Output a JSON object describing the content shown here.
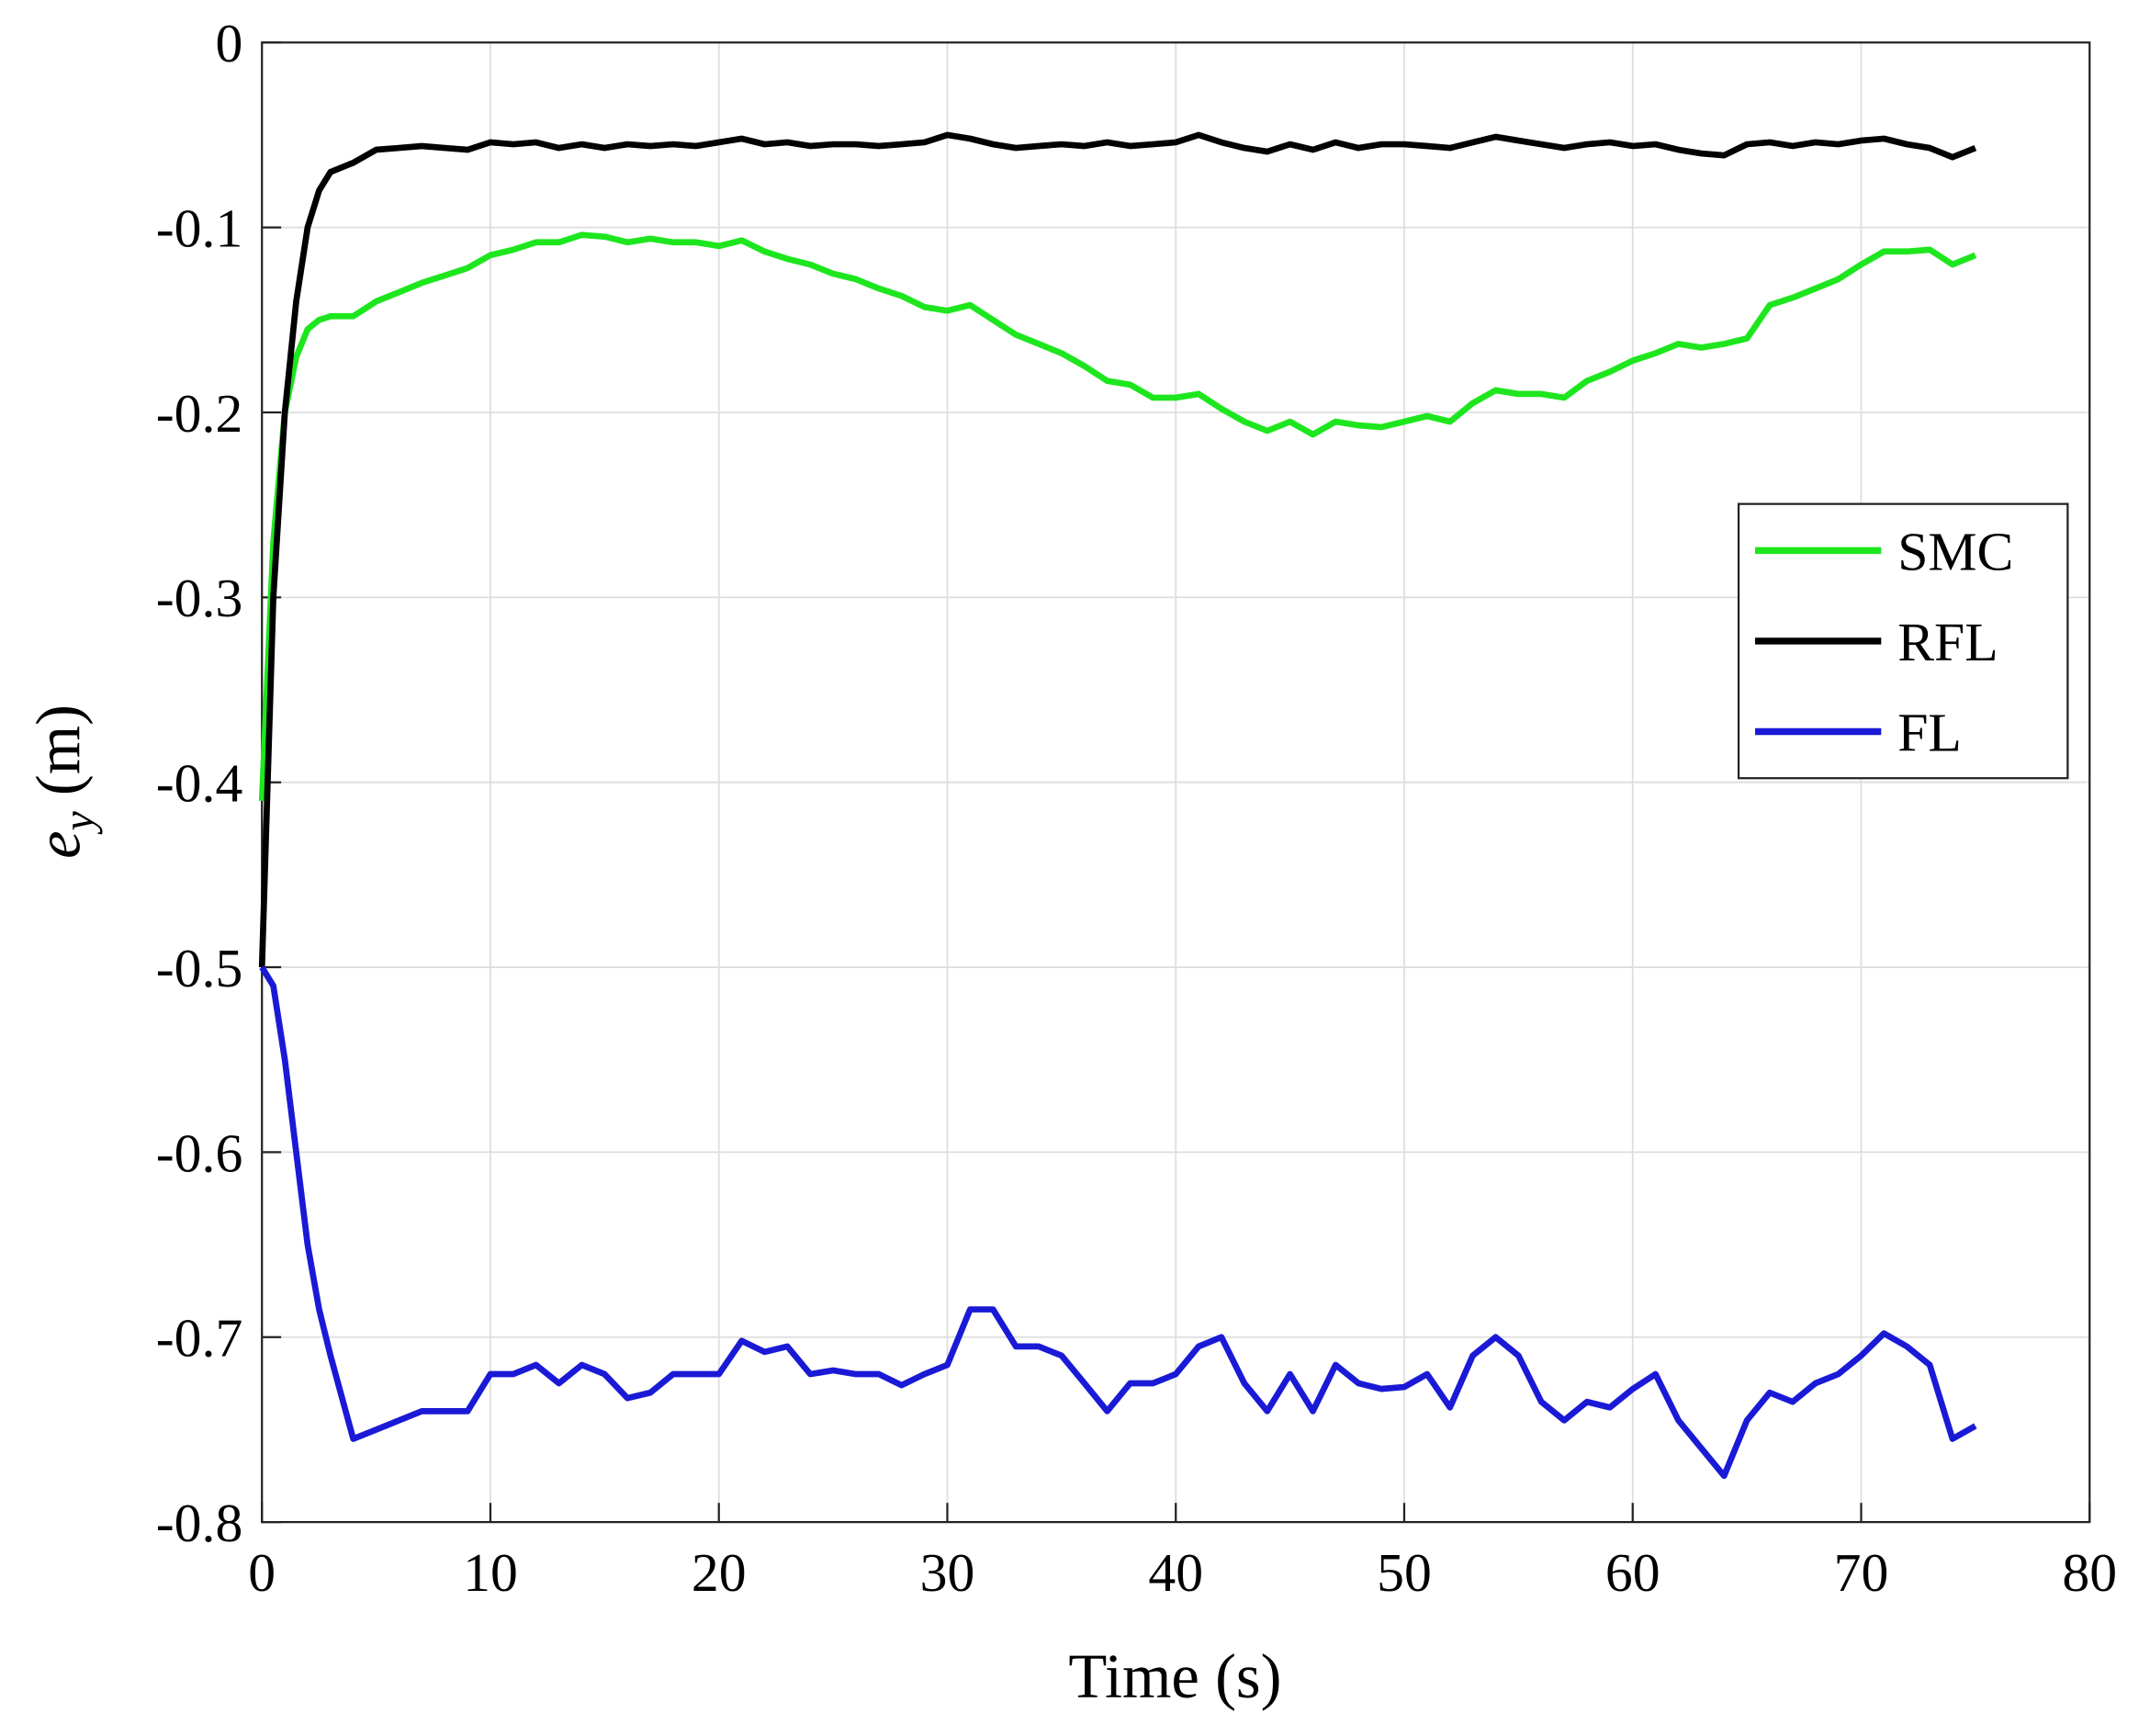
{
  "chart_data": {
    "type": "line",
    "xlabel": "Time (s)",
    "ylabel": "e_y (m)",
    "x": [
      0,
      0.5,
      1,
      1.5,
      2,
      2.5,
      3,
      4,
      5,
      6,
      7,
      8,
      9,
      10,
      11,
      12,
      13,
      14,
      15,
      16,
      17,
      18,
      19,
      20,
      21,
      22,
      23,
      24,
      25,
      26,
      27,
      28,
      29,
      30,
      31,
      32,
      33,
      34,
      35,
      36,
      37,
      38,
      39,
      40,
      41,
      42,
      43,
      44,
      45,
      46,
      47,
      48,
      49,
      50,
      51,
      52,
      53,
      54,
      55,
      56,
      57,
      58,
      59,
      60,
      61,
      62,
      63,
      64,
      65,
      66,
      67,
      68,
      69,
      70,
      71,
      72,
      73,
      74,
      75
    ],
    "series": [
      {
        "name": "SMC",
        "color": "#1ee61e",
        "values": [
          -0.41,
          -0.27,
          -0.2,
          -0.17,
          -0.155,
          -0.15,
          -0.148,
          -0.148,
          -0.14,
          -0.135,
          -0.13,
          -0.126,
          -0.122,
          -0.115,
          -0.112,
          -0.108,
          -0.108,
          -0.104,
          -0.105,
          -0.108,
          -0.106,
          -0.108,
          -0.108,
          -0.11,
          -0.107,
          -0.113,
          -0.117,
          -0.12,
          -0.125,
          -0.128,
          -0.133,
          -0.137,
          -0.143,
          -0.145,
          -0.142,
          -0.15,
          -0.158,
          -0.163,
          -0.168,
          -0.175,
          -0.183,
          -0.185,
          -0.192,
          -0.192,
          -0.19,
          -0.198,
          -0.205,
          -0.21,
          -0.205,
          -0.212,
          -0.205,
          -0.207,
          -0.208,
          -0.205,
          -0.202,
          -0.205,
          -0.195,
          -0.188,
          -0.19,
          -0.19,
          -0.192,
          -0.183,
          -0.178,
          -0.172,
          -0.168,
          -0.163,
          -0.165,
          -0.163,
          -0.16,
          -0.142,
          -0.138,
          -0.133,
          -0.128,
          -0.12,
          -0.113,
          -0.113,
          -0.112,
          -0.12,
          -0.115
        ]
      },
      {
        "name": "RFL",
        "color": "#000000",
        "values": [
          -0.5,
          -0.3,
          -0.2,
          -0.14,
          -0.1,
          -0.08,
          -0.07,
          -0.065,
          -0.058,
          -0.057,
          -0.056,
          -0.057,
          -0.058,
          -0.054,
          -0.055,
          -0.054,
          -0.057,
          -0.055,
          -0.057,
          -0.055,
          -0.056,
          -0.055,
          -0.056,
          -0.054,
          -0.052,
          -0.055,
          -0.054,
          -0.056,
          -0.055,
          -0.055,
          -0.056,
          -0.055,
          -0.054,
          -0.05,
          -0.052,
          -0.055,
          -0.057,
          -0.056,
          -0.055,
          -0.056,
          -0.054,
          -0.056,
          -0.055,
          -0.054,
          -0.05,
          -0.054,
          -0.057,
          -0.059,
          -0.055,
          -0.058,
          -0.054,
          -0.057,
          -0.055,
          -0.055,
          -0.056,
          -0.057,
          -0.054,
          -0.051,
          -0.053,
          -0.055,
          -0.057,
          -0.055,
          -0.054,
          -0.056,
          -0.055,
          -0.058,
          -0.06,
          -0.061,
          -0.055,
          -0.054,
          -0.056,
          -0.054,
          -0.055,
          -0.053,
          -0.052,
          -0.055,
          -0.057,
          -0.062,
          -0.057
        ]
      },
      {
        "name": "FL",
        "color": "#1a1ad6",
        "values": [
          -0.5,
          -0.51,
          -0.55,
          -0.6,
          -0.65,
          -0.685,
          -0.71,
          -0.755,
          -0.75,
          -0.745,
          -0.74,
          -0.74,
          -0.74,
          -0.72,
          -0.72,
          -0.715,
          -0.725,
          -0.715,
          -0.72,
          -0.733,
          -0.73,
          -0.72,
          -0.72,
          -0.72,
          -0.702,
          -0.708,
          -0.705,
          -0.72,
          -0.718,
          -0.72,
          -0.72,
          -0.726,
          -0.72,
          -0.715,
          -0.685,
          -0.685,
          -0.705,
          -0.705,
          -0.71,
          -0.725,
          -0.74,
          -0.725,
          -0.725,
          -0.72,
          -0.705,
          -0.7,
          -0.725,
          -0.74,
          -0.72,
          -0.74,
          -0.715,
          -0.725,
          -0.728,
          -0.727,
          -0.72,
          -0.738,
          -0.71,
          -0.7,
          -0.71,
          -0.735,
          -0.745,
          -0.735,
          -0.738,
          -0.728,
          -0.72,
          -0.745,
          -0.76,
          -0.775,
          -0.745,
          -0.73,
          -0.735,
          -0.725,
          -0.72,
          -0.71,
          -0.698,
          -0.705,
          -0.715,
          -0.755,
          -0.748
        ]
      }
    ],
    "xlim": [
      0,
      80
    ],
    "xticks": [
      0,
      10,
      20,
      30,
      40,
      50,
      60,
      70,
      80
    ],
    "ylim": [
      -0.8,
      0
    ],
    "yticks": [
      0,
      -0.1,
      -0.2,
      -0.3,
      -0.4,
      -0.5,
      -0.6,
      -0.7,
      -0.8
    ],
    "grid": true,
    "legend": "east"
  }
}
